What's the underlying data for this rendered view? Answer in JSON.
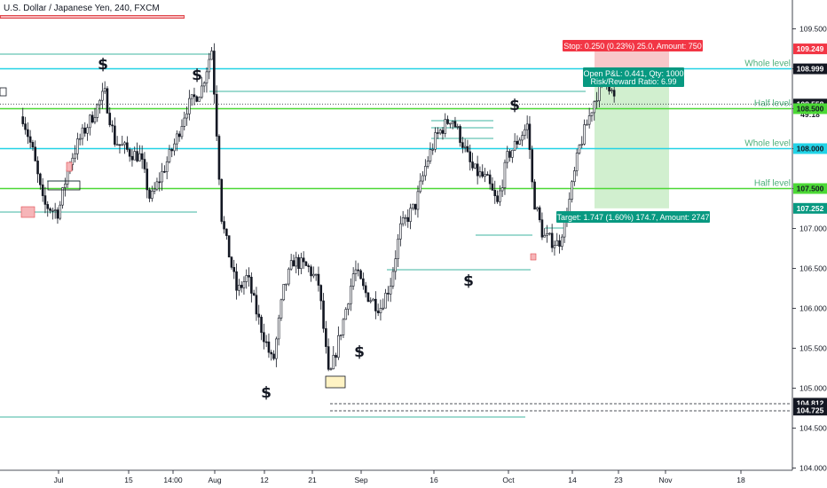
{
  "header": {
    "symbol_title": "U.S. Dollar / Japanese Yen, 240, FXCM"
  },
  "chart_data": {
    "type": "candlestick",
    "title": "U.S. Dollar / Japanese Yen, 240, FXCM",
    "y_axis": {
      "ticks": [
        104.0,
        104.5,
        105.0,
        105.5,
        106.0,
        106.5,
        107.0,
        107.5,
        108.0,
        108.5,
        109.0,
        109.5
      ],
      "tick_labels": [
        "104.000",
        "104.500",
        "105.000",
        "105.500",
        "106.000",
        "106.500",
        "107.000",
        "107.500",
        "108.000",
        "108.500",
        "109.000",
        "109.500"
      ],
      "ylim": [
        104.0,
        109.8
      ]
    },
    "x_axis": {
      "tick_labels": [
        "Jul",
        "15",
        "14:00",
        "Aug",
        "12",
        "21",
        "Sep",
        "16",
        "Oct",
        "14",
        "23",
        "Nov",
        "18"
      ]
    },
    "price_path": [
      [
        "Jun 24",
        108.4
      ],
      [
        "Jun 26",
        107.95
      ],
      [
        "Jun 28",
        107.3
      ],
      [
        "Jul 1",
        107.2
      ],
      [
        "Jul 3",
        107.8
      ],
      [
        "Jul 5",
        108.1
      ],
      [
        "Jul 8",
        108.45
      ],
      [
        "Jul 10",
        108.7
      ],
      [
        "Jul 12",
        108.1
      ],
      [
        "Jul 15",
        107.95
      ],
      [
        "Jul 17",
        107.9
      ],
      [
        "Jul 19",
        107.35
      ],
      [
        "Jul 22",
        107.8
      ],
      [
        "Jul 24",
        108.1
      ],
      [
        "Jul 26",
        108.5
      ],
      [
        "Jul 29",
        108.75
      ],
      [
        "Jul 31",
        109.25
      ],
      [
        "Aug 1",
        108.2
      ],
      [
        "Aug 2",
        107.1
      ],
      [
        "Aug 5",
        106.2
      ],
      [
        "Aug 7",
        106.4
      ],
      [
        "Aug 9",
        105.9
      ],
      [
        "Aug 12",
        105.3
      ],
      [
        "Aug 14",
        106.2
      ],
      [
        "Aug 16",
        106.6
      ],
      [
        "Aug 19",
        106.5
      ],
      [
        "Aug 21",
        106.3
      ],
      [
        "Aug 23",
        105.1
      ],
      [
        "Aug 26",
        105.9
      ],
      [
        "Aug 28",
        106.5
      ],
      [
        "Aug 30",
        106.2
      ],
      [
        "Sep 2",
        106.0
      ],
      [
        "Sep 4",
        106.3
      ],
      [
        "Sep 6",
        107.0
      ],
      [
        "Sep 9",
        107.3
      ],
      [
        "Sep 11",
        107.8
      ],
      [
        "Sep 13",
        108.15
      ],
      [
        "Sep 16",
        108.4
      ],
      [
        "Sep 18",
        108.1
      ],
      [
        "Sep 20",
        107.75
      ],
      [
        "Sep 23",
        107.6
      ],
      [
        "Sep 25",
        107.3
      ],
      [
        "Sep 27",
        107.9
      ],
      [
        "Sep 30",
        108.2
      ],
      [
        "Oct 1",
        108.3
      ],
      [
        "Oct 2",
        107.4
      ],
      [
        "Oct 4",
        106.9
      ],
      [
        "Oct 7",
        106.8
      ],
      [
        "Oct 9",
        107.3
      ],
      [
        "Oct 11",
        108.0
      ],
      [
        "Oct 14",
        108.6
      ],
      [
        "Oct 16",
        108.95
      ],
      [
        "Oct 18",
        108.6
      ]
    ],
    "horizontal_levels": [
      {
        "name": "Whole level",
        "value": 109.0,
        "color": "#22d3e6"
      },
      {
        "name": "Half level",
        "value": 108.5,
        "color": "#4cd836"
      },
      {
        "name": "Whole level",
        "value": 108.0,
        "color": "#22d3e6"
      },
      {
        "name": "Half level",
        "value": 107.5,
        "color": "#4cd836"
      }
    ],
    "price_badges": [
      {
        "value": "109.249",
        "bg": "#f23645",
        "fg": "#ffffff",
        "price": 109.249
      },
      {
        "value": "108.999",
        "bg": "#131722",
        "fg": "#ffffff",
        "price": 108.999
      },
      {
        "value": "108.558",
        "bg": "#131722",
        "fg": "#ffffff",
        "price": 108.558
      },
      {
        "value": "49:18",
        "bg": "#ffffff",
        "fg": "#131722",
        "price": 108.43
      },
      {
        "value": "108.500",
        "bg": "#4cd836",
        "fg": "#131722",
        "price": 108.5
      },
      {
        "value": "108.000",
        "bg": "#22d3e6",
        "fg": "#131722",
        "price": 108.0
      },
      {
        "value": "107.500",
        "bg": "#4cd836",
        "fg": "#131722",
        "price": 107.5
      },
      {
        "value": "107.252",
        "bg": "#089981",
        "fg": "#ffffff",
        "price": 107.252
      },
      {
        "value": "104.812",
        "bg": "#131722",
        "fg": "#ffffff",
        "price": 104.812
      },
      {
        "value": "104.725",
        "bg": "#131722",
        "fg": "#ffffff",
        "price": 104.725
      }
    ],
    "position": {
      "stop_label": "Stop: 0.250 (0.23%) 25.0, Amount: 750",
      "open_pnl_label": "Open P&L: 0.441, Qty: 1000",
      "risk_reward_label": "Risk/Reward Ratio: 6.99",
      "target_label": "Target: 1.747 (1.60%) 174.7, Amount: 2747",
      "entry": 108.999,
      "stop": 109.249,
      "target": 107.252
    },
    "annotations": [
      {
        "text": "$",
        "color": "#131722"
      },
      {
        "text": "$",
        "color": "#131722"
      },
      {
        "text": "$",
        "color": "#131722"
      },
      {
        "text": "$",
        "color": "#131722"
      },
      {
        "text": "$",
        "color": "#131722"
      },
      {
        "text": "$",
        "color": "#131722"
      }
    ],
    "colors": {
      "candle": "#131722",
      "stop_zone": "#f6b5b8",
      "target_zone": "#c9ecc7",
      "support_line": "#3fb5a0",
      "axis_text": "#131722",
      "level_text": "#4caf79"
    }
  }
}
